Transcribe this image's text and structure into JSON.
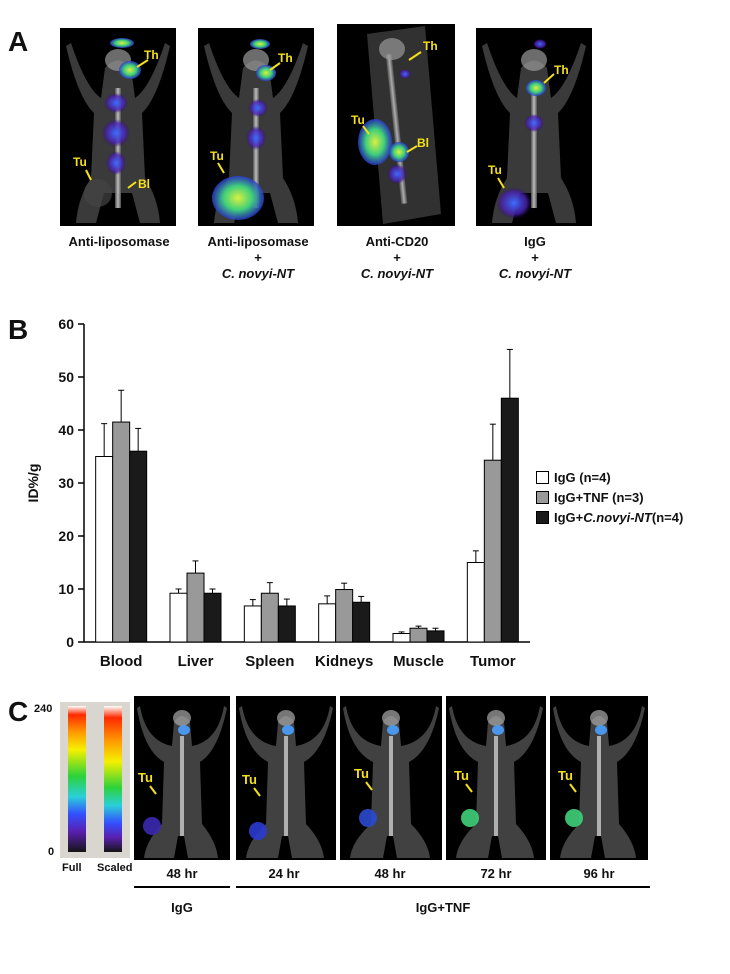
{
  "panels": {
    "a": "A",
    "b": "B",
    "c": "C"
  },
  "panelA": {
    "images": [
      {
        "caption": [
          "Anti-liposomase"
        ],
        "caption_italic": [],
        "labels": [
          "Th",
          "Tu",
          "Bl"
        ]
      },
      {
        "caption": [
          "Anti-liposomase",
          "+"
        ],
        "caption_italic": [
          "C. novyi-NT"
        ],
        "labels": [
          "Th",
          "Tu"
        ]
      },
      {
        "caption": [
          "Anti-CD20",
          "+"
        ],
        "caption_italic": [
          "C. novyi-NT"
        ],
        "labels": [
          "Th",
          "Tu",
          "Bl"
        ]
      },
      {
        "caption": [
          "IgG",
          "+"
        ],
        "caption_italic": [
          "C. novyi-NT"
        ],
        "labels": [
          "Th",
          "Tu"
        ]
      }
    ]
  },
  "chart_data": {
    "type": "bar",
    "ylabel": "ID%/g",
    "ylim": [
      0,
      60
    ],
    "yticks": [
      0,
      10,
      20,
      30,
      40,
      50,
      60
    ],
    "categories": [
      "Blood",
      "Liver",
      "Spleen",
      "Kidneys",
      "Muscle",
      "Tumor"
    ],
    "series": [
      {
        "name": "IgG (n=4)",
        "color": "#ffffff",
        "values": [
          35,
          9.2,
          6.8,
          7.2,
          1.6,
          15
        ],
        "errors": [
          6.2,
          0.8,
          1.2,
          1.5,
          0.3,
          2.2
        ]
      },
      {
        "name": "IgG+TNF (n=3)",
        "color": "#999999",
        "values": [
          41.5,
          13,
          9.2,
          9.9,
          2.6,
          34.3
        ],
        "errors": [
          6,
          2.3,
          2,
          1.2,
          0.4,
          6.8
        ]
      },
      {
        "name_prefix": "IgG+",
        "name_italic": "C.novyi-NT",
        "name_suffix": " (n=4)",
        "color": "#1a1a1a",
        "values": [
          36,
          9.2,
          6.8,
          7.5,
          2.1,
          46
        ],
        "errors": [
          4.3,
          0.8,
          1.3,
          1.1,
          0.5,
          9.2
        ]
      }
    ],
    "legend_position": "right"
  },
  "panelC": {
    "colorbar": {
      "top": "240",
      "bottom": "0",
      "full": "Full",
      "scaled": "Scaled"
    },
    "tu_label": "Tu",
    "times": [
      "48 hr",
      "24 hr",
      "48 hr",
      "72 hr",
      "96 hr"
    ],
    "groups": [
      "IgG",
      "IgG+TNF"
    ]
  }
}
